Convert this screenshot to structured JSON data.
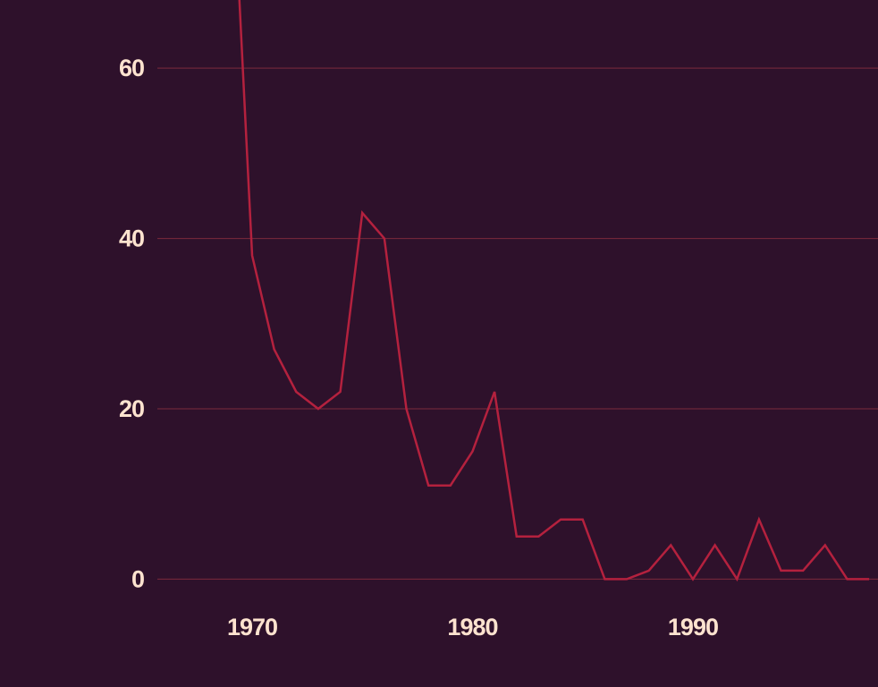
{
  "colors": {
    "background": "#2e112b",
    "line": "#b4213e",
    "grid": "#7c2a3c",
    "text": "#fde3cf"
  },
  "chart_data": {
    "type": "line",
    "title": "",
    "xlabel": "",
    "ylabel": "",
    "grid": true,
    "legend": "none",
    "xlim": [
      1965.7,
      1998.4
    ],
    "ylim": [
      -3,
      68
    ],
    "xticks": [
      1970,
      1980,
      1990
    ],
    "yticks": [
      0,
      20,
      40,
      60
    ],
    "xtick_labels": [
      "1970",
      "1980",
      "1990"
    ],
    "ytick_labels": [
      "0",
      "20",
      "40",
      "60"
    ],
    "series": [
      {
        "x": [
          1969,
          1970,
          1971,
          1972,
          1973,
          1974,
          1975,
          1976,
          1977,
          1978,
          1979,
          1980,
          1981,
          1982,
          1983,
          1984,
          1985,
          1986,
          1987,
          1988,
          1989,
          1990,
          1991,
          1992,
          1993,
          1994,
          1995,
          1996,
          1997,
          1998
        ],
        "values": [
          90,
          38,
          27,
          22,
          20,
          22,
          43,
          40,
          20,
          11,
          11,
          15,
          22,
          5,
          5,
          7,
          7,
          0,
          0,
          1,
          4,
          0,
          4,
          0,
          7,
          1,
          1,
          4,
          0,
          0
        ]
      }
    ]
  }
}
